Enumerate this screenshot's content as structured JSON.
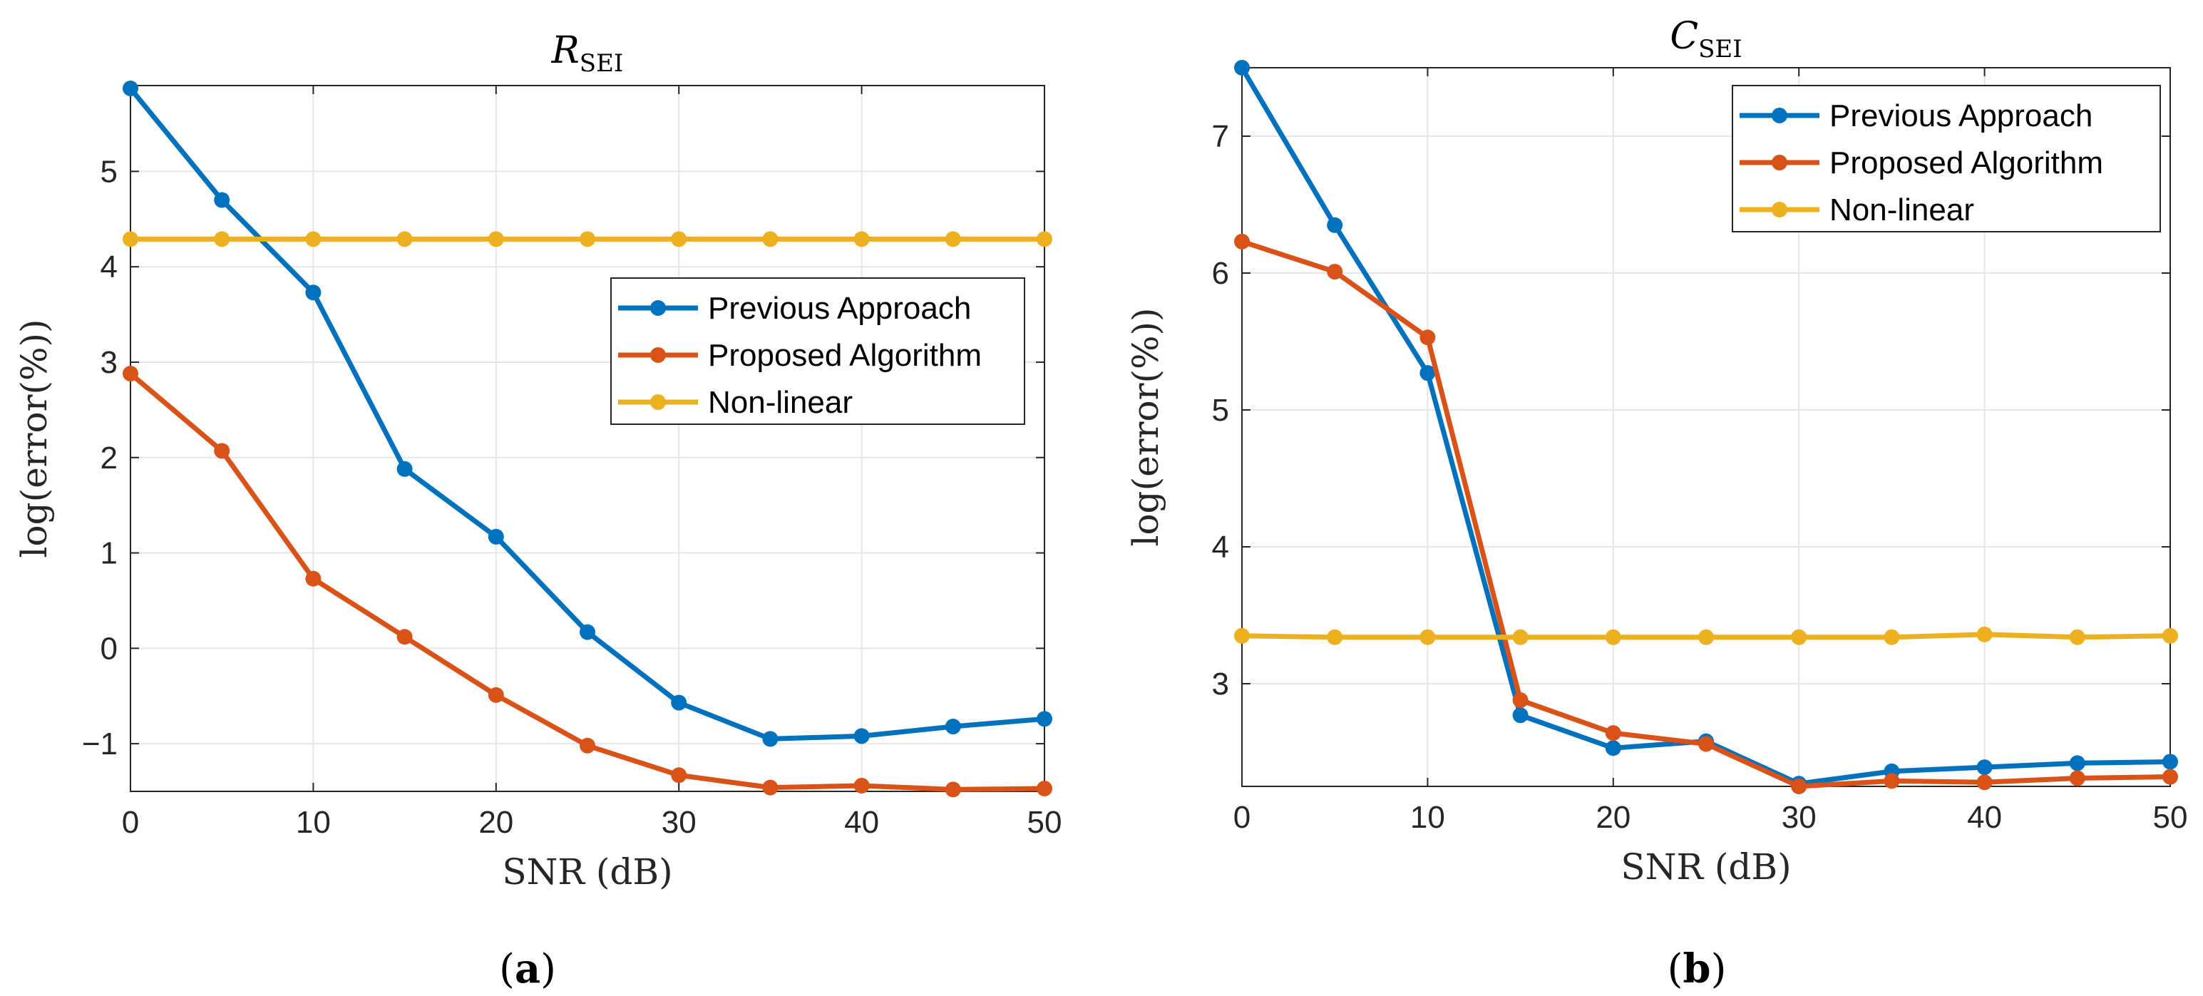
{
  "chart_data": [
    {
      "id": "a",
      "type": "line",
      "title": "R",
      "title_subscript": "SEI",
      "xlabel": "SNR (dB)",
      "ylabel": "log(error(%))",
      "panel_label": "a",
      "xlim": [
        0,
        50
      ],
      "ylim": [
        -1.5,
        5.9
      ],
      "xticks": [
        0,
        10,
        20,
        30,
        40,
        50
      ],
      "yticks": [
        -1,
        0,
        1,
        2,
        3,
        4,
        5
      ],
      "ytick_labels": [
        "−1",
        "0",
        "1",
        "2",
        "3",
        "4",
        "5"
      ],
      "grid": true,
      "legend_position": "center-right",
      "x": [
        0,
        5,
        10,
        15,
        20,
        25,
        30,
        35,
        40,
        45,
        50
      ],
      "series": [
        {
          "name": "Previous Approach",
          "color": "#0072BD",
          "values": [
            5.87,
            4.7,
            3.73,
            1.88,
            1.17,
            0.17,
            -0.57,
            -0.95,
            -0.92,
            -0.82,
            -0.74
          ]
        },
        {
          "name": "Proposed Algorithm",
          "color": "#D95319",
          "values": [
            2.88,
            2.07,
            0.73,
            0.12,
            -0.49,
            -1.02,
            -1.33,
            -1.46,
            -1.44,
            -1.48,
            -1.47
          ]
        },
        {
          "name": "Non-linear",
          "color": "#EDB120",
          "values": [
            4.29,
            4.29,
            4.29,
            4.29,
            4.29,
            4.29,
            4.29,
            4.29,
            4.29,
            4.29,
            4.29
          ]
        }
      ]
    },
    {
      "id": "b",
      "type": "line",
      "title": "C",
      "title_subscript": "SEI",
      "xlabel": "SNR (dB)",
      "ylabel": "log(error(%))",
      "panel_label": "b",
      "xlim": [
        0,
        50
      ],
      "ylim": [
        2.25,
        7.5
      ],
      "xticks": [
        0,
        10,
        20,
        30,
        40,
        50
      ],
      "yticks": [
        3,
        4,
        5,
        6,
        7
      ],
      "ytick_labels": [
        "3",
        "4",
        "5",
        "6",
        "7"
      ],
      "grid": true,
      "legend_position": "top-right",
      "x": [
        0,
        5,
        10,
        15,
        20,
        25,
        30,
        35,
        40,
        45,
        50
      ],
      "series": [
        {
          "name": "Previous Approach",
          "color": "#0072BD",
          "values": [
            7.5,
            6.35,
            5.27,
            2.77,
            2.53,
            2.58,
            2.27,
            2.36,
            2.39,
            2.42,
            2.43
          ]
        },
        {
          "name": "Proposed Algorithm",
          "color": "#D95319",
          "values": [
            6.23,
            6.01,
            5.53,
            2.88,
            2.64,
            2.56,
            2.25,
            2.29,
            2.28,
            2.31,
            2.32
          ]
        },
        {
          "name": "Non-linear",
          "color": "#EDB120",
          "values": [
            3.35,
            3.34,
            3.34,
            3.34,
            3.34,
            3.34,
            3.34,
            3.34,
            3.36,
            3.34,
            3.35
          ]
        }
      ]
    }
  ]
}
